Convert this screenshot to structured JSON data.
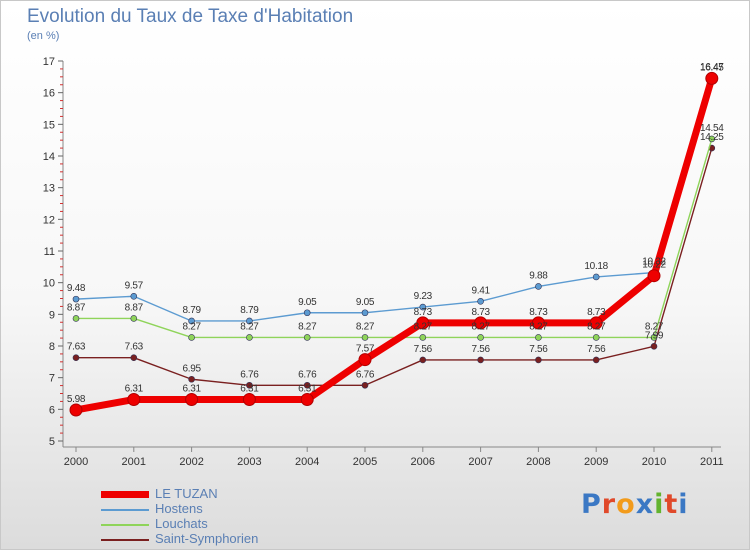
{
  "chart_data": {
    "type": "line",
    "title": "Evolution du Taux de Taxe d'Habitation",
    "subtitle": "(en %)",
    "xlabel": "",
    "ylabel": "",
    "categories": [
      "2000",
      "2001",
      "2002",
      "2003",
      "2004",
      "2005",
      "2006",
      "2007",
      "2008",
      "2009",
      "2010",
      "2011"
    ],
    "ylim": [
      5,
      17
    ],
    "yticks": [
      "5",
      "6",
      "7",
      "8",
      "9",
      "10",
      "11",
      "12",
      "13",
      "14",
      "15",
      "16",
      "17"
    ],
    "grid": false,
    "legend_position": "bottom-left",
    "series": [
      {
        "name": "LE TUZAN",
        "color": "#ee0000",
        "values": [
          5.98,
          6.31,
          6.31,
          6.31,
          6.31,
          7.57,
          8.73,
          8.73,
          8.73,
          8.73,
          10.22,
          16.45
        ],
        "labels": [
          "5.98",
          "6.31",
          "6.31",
          "6.31",
          "6.31",
          "7.57",
          "8.73",
          "8.73",
          "8.73",
          "8.73",
          "10.22",
          "16.45"
        ]
      },
      {
        "name": "Hostens",
        "color": "#5c9bd1",
        "values": [
          9.48,
          9.57,
          8.79,
          8.79,
          9.05,
          9.05,
          9.23,
          9.41,
          9.88,
          10.18,
          10.32,
          16.47
        ],
        "labels": [
          "9.48",
          "9.57",
          "8.79",
          "8.79",
          "9.05",
          "9.05",
          "9.23",
          "9.41",
          "9.88",
          "10.18",
          "10.32",
          "16.47"
        ]
      },
      {
        "name": "Louchats",
        "color": "#8fd45a",
        "values": [
          8.87,
          8.87,
          8.27,
          8.27,
          8.27,
          8.27,
          8.27,
          8.27,
          8.27,
          8.27,
          8.27,
          14.54
        ],
        "labels": [
          "8.87",
          "8.87",
          "8.27",
          "8.27",
          "8.27",
          "8.27",
          "8.27",
          "8.27",
          "8.27",
          "8.27",
          "8.27",
          "14.54"
        ]
      },
      {
        "name": "Saint-Symphorien",
        "color": "#7a2020",
        "values": [
          7.63,
          7.63,
          6.95,
          6.76,
          6.76,
          6.76,
          7.56,
          7.56,
          7.56,
          7.56,
          7.99,
          14.25
        ],
        "labels": [
          "7.63",
          "7.63",
          "6.95",
          "6.76",
          "6.76",
          "6.76",
          "7.56",
          "7.56",
          "7.56",
          "7.56",
          "7.99",
          "14.25"
        ]
      }
    ]
  },
  "logo": {
    "text": "Proxiti",
    "letter_colors": [
      "#3b78c4",
      "#e0492a",
      "#f29b1b",
      "#3b78c4",
      "#63b32e",
      "#e0492a",
      "#3b78c4"
    ]
  }
}
